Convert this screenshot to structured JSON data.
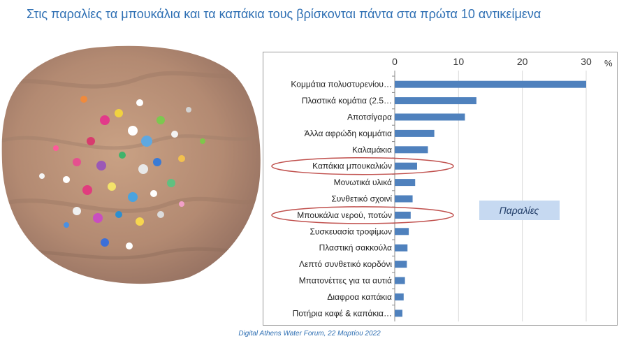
{
  "slide": {
    "title": "Στις παραλίες τα μπουκάλια και τα καπάκια τους βρίσκονται πάντα στα πρώτα 10 αντικείμενα",
    "footer": "Digital Athens Water Forum, 22 Μαρτίου 2022",
    "photo": "plastic caps on beach sand"
  },
  "chart_data": {
    "type": "bar",
    "orientation": "horizontal",
    "categories": [
      "Κομμάτια πολυστυρενίου…",
      "Πλαστικά κομάτια (2.5…",
      "Αποτσίγαρα",
      "Άλλα αφρώδη κομμάτια",
      "Καλαμάκια",
      "Καπάκια μπουκαλιών",
      "Μονωτικά υλικά",
      "Συνθετικό σχοινί",
      "Μπουκάλια νερού, ποτών",
      "Συσκευασία τροφίμων",
      "Πλαστική σακκούλα",
      "Λεπτό συνθετικό κορδόνι",
      "Μπατονέττες για τα αυτιά",
      "Διαφροα καπάκια",
      "Ποτήρια καφέ & καπάκια…"
    ],
    "values": [
      30,
      12.8,
      11,
      6.2,
      5.2,
      3.5,
      3.2,
      2.8,
      2.5,
      2.2,
      2.0,
      1.9,
      1.6,
      1.4,
      1.2
    ],
    "xlim": [
      0,
      30
    ],
    "xticks": [
      0,
      10,
      20,
      30
    ],
    "x_unit": "%",
    "xaxis_position": "top",
    "legend": "Παραλίες",
    "highlighted": [
      "Καπάκια μπουκαλιών",
      "Μπουκάλια νερού, ποτών"
    ],
    "bar_color": "#4f81bd",
    "highlight_color": "#c0504d",
    "grid": true
  }
}
